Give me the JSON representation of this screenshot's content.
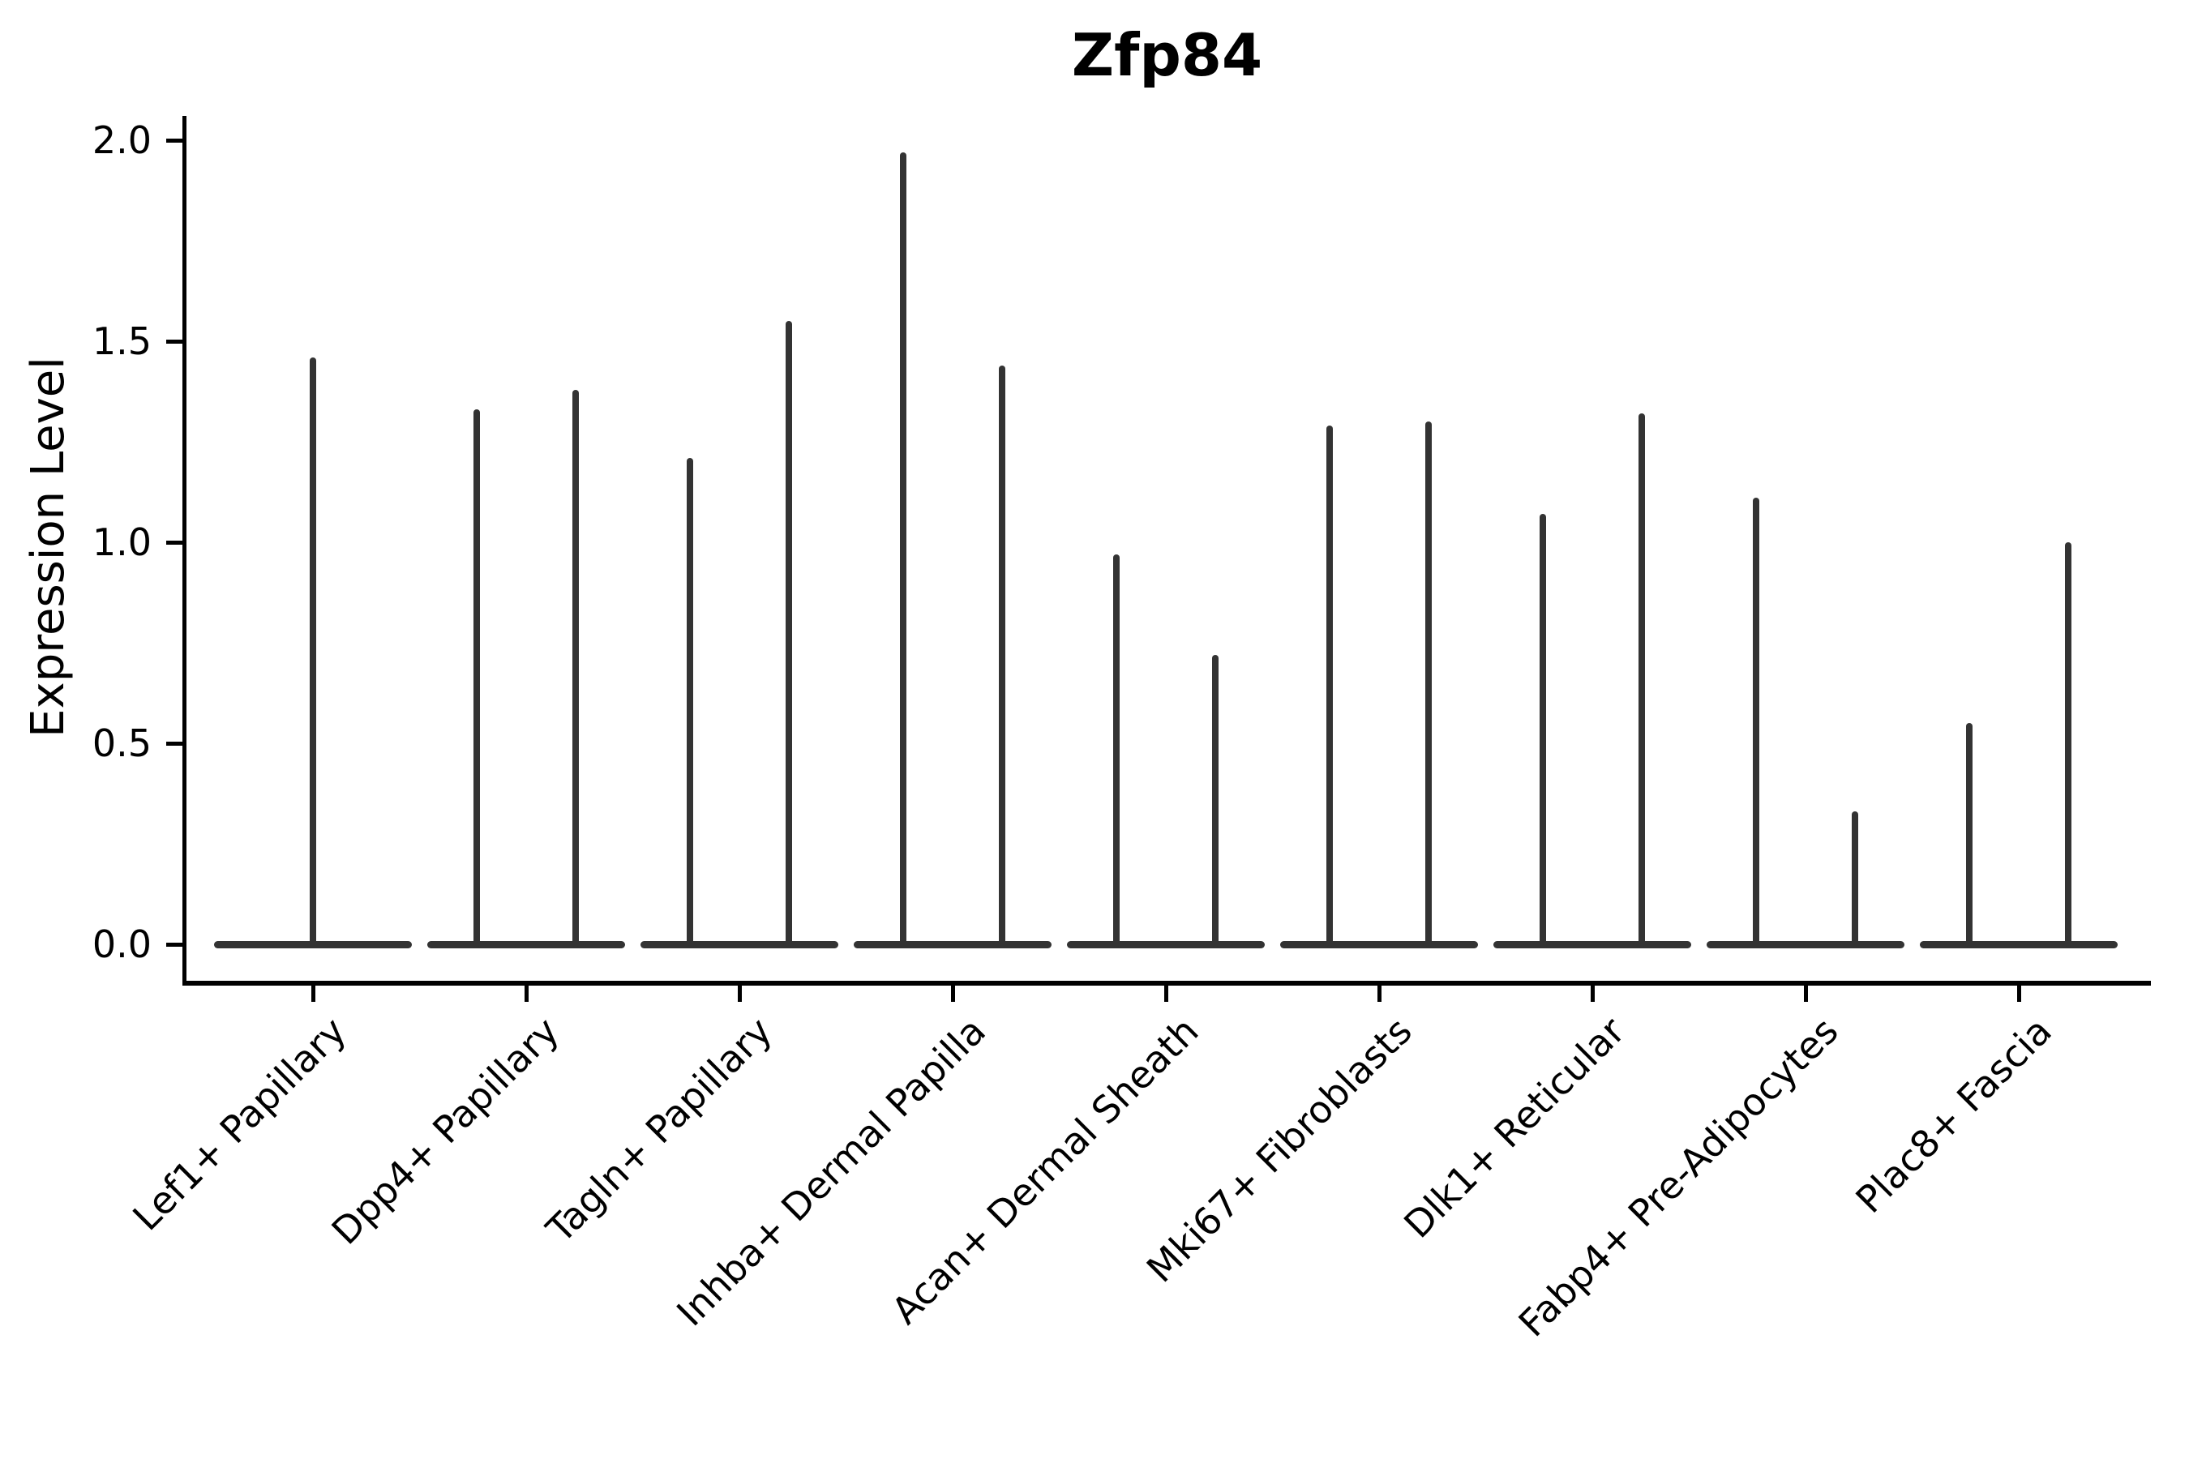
{
  "figure": {
    "title": "Zfp84",
    "y_axis_label": "Expression Level"
  },
  "colors": {
    "violin": "#333333",
    "axis": "#000000",
    "text": "#000000",
    "background": "#ffffff"
  },
  "chart_data": {
    "type": "violin",
    "title": "Zfp84",
    "xlabel": "",
    "ylabel": "Expression Level",
    "ylim": [
      -0.09,
      2.06
    ],
    "yticks": [
      0.0,
      0.5,
      1.0,
      1.5,
      2.0
    ],
    "ytick_labels": [
      "0.0",
      "0.5",
      "1.0",
      "1.5",
      "2.0"
    ],
    "grid": false,
    "legend": false,
    "categories": [
      "Lef1+ Papillary",
      "Dpp4+ Papillary",
      "Tagln+ Papillary",
      "Inhba+ Dermal Papilla",
      "Acan+ Dermal Sheath",
      "Mki67+ Fibroblasts",
      "Dlk1+ Reticular",
      "Fabp4+ Pre-Adipocytes",
      "Plac8+ Fascia"
    ],
    "violin_max_expression_per_category": [
      [
        1.46
      ],
      [
        1.33,
        1.38
      ],
      [
        1.21,
        1.55
      ],
      [
        1.97,
        1.44
      ],
      [
        0.97,
        0.72
      ],
      [
        1.29,
        1.3
      ],
      [
        1.07,
        1.32
      ],
      [
        1.11,
        0.33
      ],
      [
        0.55,
        1.0
      ]
    ],
    "violin_shape_note": "Each violin is a wide flat base at expression 0 with a thin vertical density spike rising to its max expression value; categories with two violins have them dodged symmetrically about the category tick."
  }
}
